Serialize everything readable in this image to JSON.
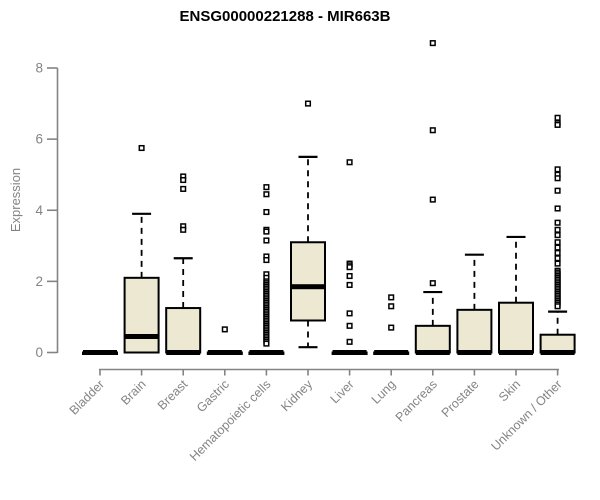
{
  "header": {
    "title": "ENSG00000221288 - MIR663B"
  },
  "chart_data": {
    "type": "boxplot",
    "title": "ENSG00000221288 - MIR663B",
    "xlabel": "",
    "ylabel": "Expression",
    "ylim": [
      0,
      8
    ],
    "yticks": [
      0,
      2,
      4,
      6,
      8
    ],
    "grid": false,
    "legend": "none",
    "colors": {
      "box_fill": "#EDE8D1",
      "box_stroke": "#000000",
      "median": "#000000",
      "whisker": "#000000",
      "outlier_stroke": "#000000",
      "outlier_fill": "#ffffff",
      "axis": "#848484",
      "tick_label": "#848484",
      "title": "#000000",
      "background": "#ffffff"
    },
    "categories": [
      "Bladder",
      "Brain",
      "Breast",
      "Gastric",
      "Hematopoietic cells",
      "Kidney",
      "Liver",
      "Lung",
      "Pancreas",
      "Prostate",
      "Skin",
      "Unknown / Other"
    ],
    "series": [
      {
        "category": "Bladder",
        "low": 0,
        "q1": 0,
        "median": 0,
        "q3": 0,
        "high": 0,
        "outliers": []
      },
      {
        "category": "Brain",
        "low": 0,
        "q1": 0,
        "median": 0.45,
        "q3": 2.1,
        "high": 3.9,
        "outliers": [
          5.75
        ]
      },
      {
        "category": "Breast",
        "low": 0,
        "q1": 0,
        "median": 0,
        "q3": 1.25,
        "high": 2.65,
        "outliers": [
          4.95,
          4.85,
          4.6,
          3.55,
          3.45
        ]
      },
      {
        "category": "Gastric",
        "low": 0,
        "q1": 0,
        "median": 0,
        "q3": 0,
        "high": 0,
        "outliers": [
          0.65
        ]
      },
      {
        "category": "Hematopoietic cells",
        "low": 0,
        "q1": 0,
        "median": 0,
        "q3": 0,
        "high": 0,
        "outliers": [
          4.65,
          4.45,
          3.95,
          3.45,
          3.4,
          3.15,
          2.7,
          2.6,
          2.2,
          2.1,
          2.0,
          1.95,
          1.9,
          1.85,
          1.8,
          1.75,
          1.7,
          1.65,
          1.6,
          1.55,
          1.5,
          1.45,
          1.4,
          1.35,
          1.3,
          1.25,
          1.2,
          1.15,
          1.1,
          1.05,
          1.0,
          0.95,
          0.9,
          0.85,
          0.8,
          0.75,
          0.7,
          0.65,
          0.6,
          0.55,
          0.5,
          0.45,
          0.4,
          0.35,
          0.3,
          0.25
        ]
      },
      {
        "category": "Kidney",
        "low": 0.15,
        "q1": 0.9,
        "median": 1.85,
        "q3": 3.1,
        "high": 5.5,
        "outliers": [
          7.0
        ]
      },
      {
        "category": "Liver",
        "low": 0,
        "q1": 0,
        "median": 0,
        "q3": 0,
        "high": 0,
        "outliers": [
          5.35,
          2.5,
          2.45,
          2.4,
          2.15,
          1.9,
          1.1,
          0.75,
          0.3
        ]
      },
      {
        "category": "Lung",
        "low": 0,
        "q1": 0,
        "median": 0,
        "q3": 0,
        "high": 0,
        "outliers": [
          1.55,
          1.3,
          0.7
        ]
      },
      {
        "category": "Pancreas",
        "low": 0,
        "q1": 0,
        "median": 0,
        "q3": 0.75,
        "high": 1.7,
        "outliers": [
          8.7,
          6.25,
          4.3,
          1.95
        ]
      },
      {
        "category": "Prostate",
        "low": 0,
        "q1": 0,
        "median": 0,
        "q3": 1.2,
        "high": 2.75,
        "outliers": []
      },
      {
        "category": "Skin",
        "low": 0,
        "q1": 0,
        "median": 0,
        "q3": 1.4,
        "high": 3.25,
        "outliers": []
      },
      {
        "category": "Unknown / Other",
        "low": 0,
        "q1": 0,
        "median": 0,
        "q3": 0.5,
        "high": 1.15,
        "outliers": [
          6.6,
          6.45,
          6.4,
          5.15,
          5.0,
          4.9,
          4.55,
          4.05,
          3.65,
          3.45,
          3.3,
          3.1,
          2.95,
          2.8,
          2.65,
          2.5,
          2.3,
          2.25,
          2.2,
          2.15,
          2.1,
          2.05,
          2.0,
          1.95,
          1.9,
          1.85,
          1.8,
          1.75,
          1.7,
          1.65,
          1.6,
          1.55,
          1.5,
          1.45,
          1.4,
          1.35,
          1.3
        ]
      }
    ]
  }
}
